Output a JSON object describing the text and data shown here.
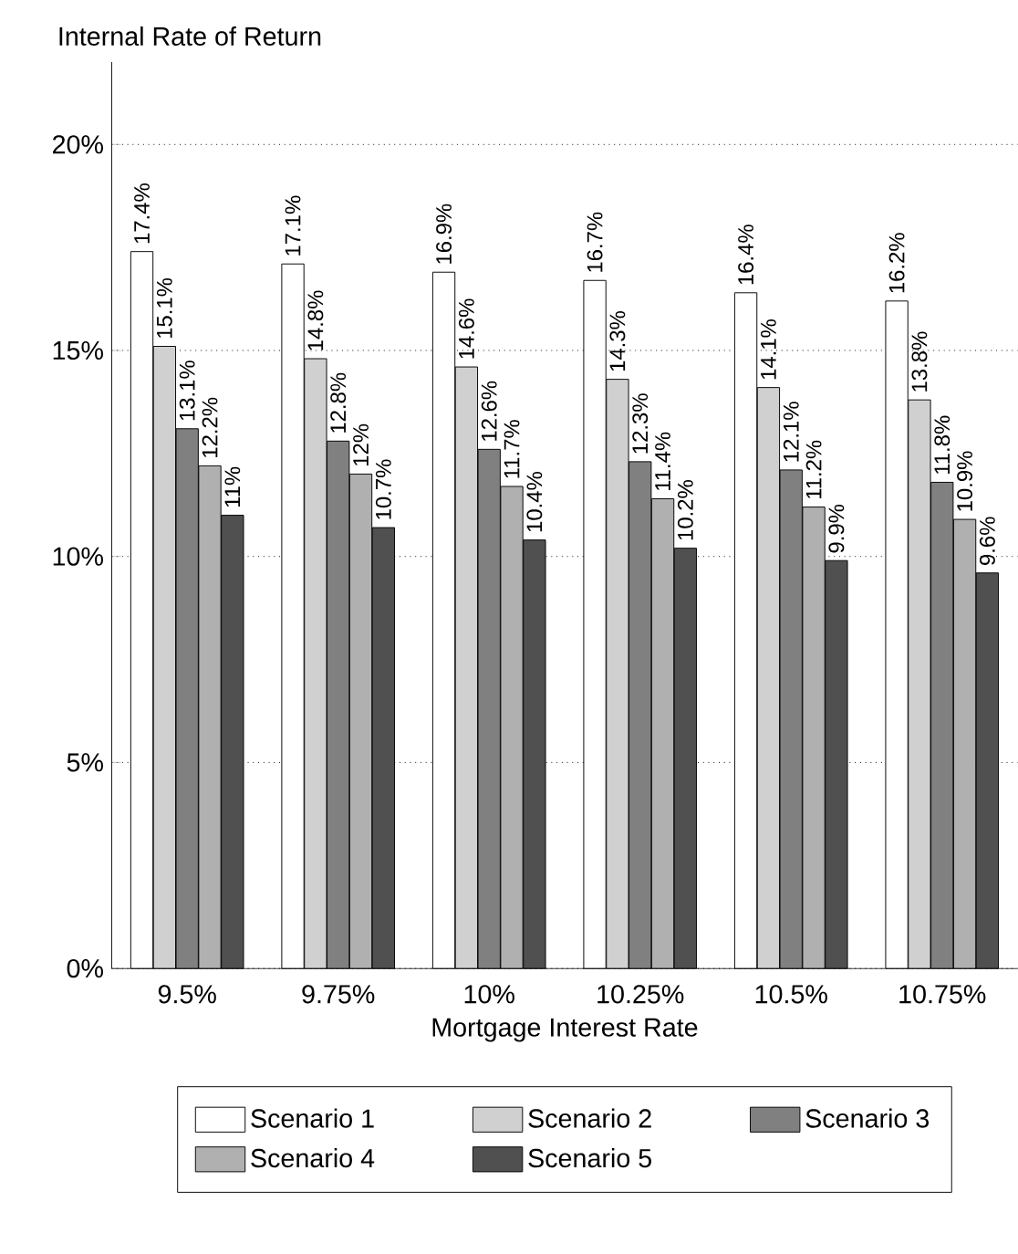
{
  "chart_data": {
    "type": "bar",
    "xlabel": "Mortgage Interest Rate",
    "ylabel": "Internal Rate of Return",
    "categories": [
      "9.5%",
      "9.75%",
      "10%",
      "10.25%",
      "10.5%",
      "10.75%"
    ],
    "series": [
      {
        "name": "Scenario 1",
        "color": "#ffffff",
        "values": [
          17.4,
          17.1,
          16.9,
          16.7,
          16.4,
          16.2
        ],
        "value_labels": [
          "17.4%",
          "17.1%",
          "16.9%",
          "16.7%",
          "16.4%",
          "16.2%"
        ]
      },
      {
        "name": "Scenario 2",
        "color": "#d0d0d0",
        "values": [
          15.1,
          14.8,
          14.6,
          14.3,
          14.1,
          13.8
        ],
        "value_labels": [
          "15.1%",
          "14.8%",
          "14.6%",
          "14.3%",
          "14.1%",
          "13.8%"
        ]
      },
      {
        "name": "Scenario 3",
        "color": "#808080",
        "values": [
          13.1,
          12.8,
          12.6,
          12.3,
          12.1,
          11.8
        ],
        "value_labels": [
          "13.1%",
          "12.8%",
          "12.6%",
          "12.3%",
          "12.1%",
          "11.8%"
        ]
      },
      {
        "name": "Scenario 4",
        "color": "#b0b0b0",
        "values": [
          12.2,
          12,
          11.7,
          11.4,
          11.2,
          10.9
        ],
        "value_labels": [
          "12.2%",
          "12%",
          "11.7%",
          "11.4%",
          "11.2%",
          "10.9%"
        ]
      },
      {
        "name": "Scenario 5",
        "color": "#505050",
        "values": [
          11,
          10.7,
          10.4,
          10.2,
          9.9,
          9.6
        ],
        "value_labels": [
          "11%",
          "10.7%",
          "10.4%",
          "10.2%",
          "9.9%",
          "9.6%"
        ]
      }
    ],
    "ylim": [
      0,
      22
    ],
    "yticks": [
      {
        "value": 0,
        "label": "0%"
      },
      {
        "value": 5,
        "label": "5%"
      },
      {
        "value": 10,
        "label": "10%"
      },
      {
        "value": 15,
        "label": "15%"
      },
      {
        "value": 20,
        "label": "20%"
      }
    ],
    "grid": "y",
    "legend": "bottom"
  }
}
